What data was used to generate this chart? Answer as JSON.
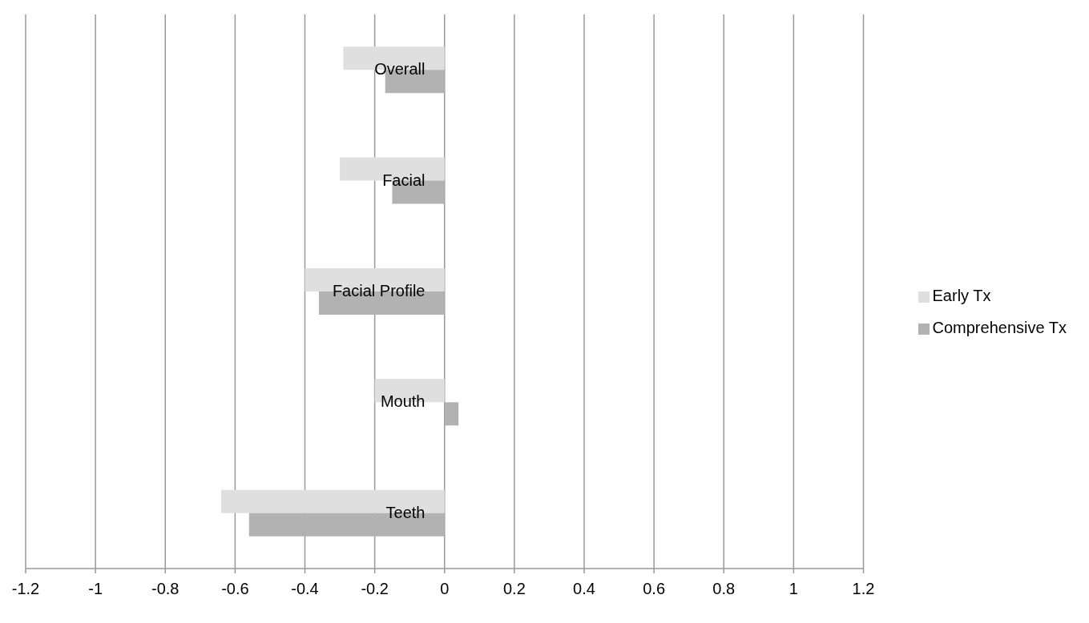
{
  "chart_data": {
    "type": "bar",
    "orientation": "horizontal",
    "categories": [
      "Overall",
      "Facial",
      "Facial Profile",
      "Mouth",
      "Teeth"
    ],
    "series": [
      {
        "name": "Early Tx",
        "color": "#dfdfdf",
        "values": [
          -0.29,
          -0.3,
          -0.4,
          -0.2,
          -0.64
        ]
      },
      {
        "name": "Comprehensive Tx",
        "color": "#b2b2b2",
        "values": [
          -0.17,
          -0.15,
          -0.36,
          0.04,
          -0.56
        ]
      }
    ],
    "xlim": [
      -1.2,
      1.2
    ],
    "xticks": [
      -1.2,
      -1,
      -0.8,
      -0.6,
      -0.4,
      -0.2,
      0,
      0.2,
      0.4,
      0.6,
      0.8,
      1,
      1.2
    ],
    "grid": "x",
    "legend": "right"
  }
}
